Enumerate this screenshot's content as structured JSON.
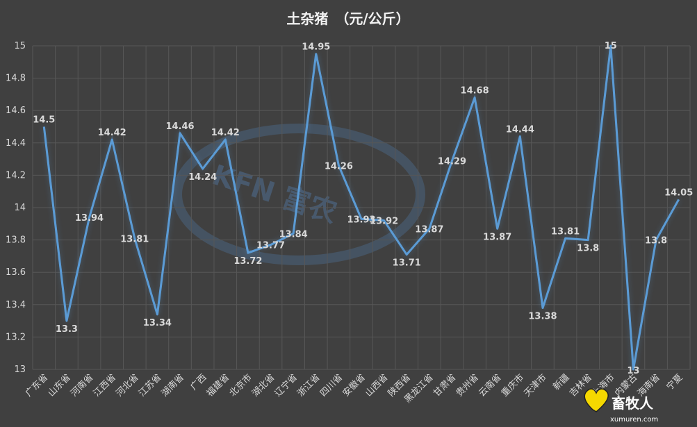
{
  "chart_data": {
    "type": "line",
    "title": "土杂猪　（元/公斤）",
    "xlabel": "",
    "ylabel": "",
    "ylim": [
      13,
      15
    ],
    "yticks": [
      "13",
      "13.2",
      "13.4",
      "13.6",
      "13.8",
      "14",
      "14.2",
      "14.4",
      "14.6",
      "14.8",
      "15"
    ],
    "grid": true,
    "legend": "none",
    "line_color": "#5b9bd5",
    "categories": [
      "广东省",
      "山东省",
      "河南省",
      "江西省",
      "河北省",
      "江苏省",
      "湖南省",
      "广西",
      "福建省",
      "北京市",
      "湖北省",
      "辽宁省",
      "浙江省",
      "四川省",
      "安徽省",
      "山西省",
      "陕西省",
      "黑龙江省",
      "甘肃省",
      "贵州省",
      "云南省",
      "重庆市",
      "天津市",
      "新疆",
      "吉林省",
      "上海市",
      "内蒙古",
      "海南省",
      "宁夏"
    ],
    "values": [
      14.5,
      13.3,
      13.94,
      14.42,
      13.81,
      13.34,
      14.46,
      14.24,
      14.42,
      13.72,
      13.77,
      13.84,
      14.95,
      14.26,
      13.93,
      13.92,
      13.71,
      13.87,
      14.29,
      14.68,
      13.87,
      14.44,
      13.38,
      13.81,
      13.8,
      15,
      13,
      13.8,
      14.05
    ],
    "data_labels": [
      "14.5",
      "13.3",
      "13.94",
      "14.42",
      "13.81",
      "13.34",
      "14.46",
      "14.24",
      "14.42",
      "13.72",
      "13.77",
      "13.84",
      "14.95",
      "14.26",
      "13.93",
      "13.92",
      "13.71",
      "13.87",
      "14.29",
      "14.68",
      "13.87",
      "14.44",
      "13.38",
      "13.81",
      "13.8",
      "15",
      "13",
      "13.8",
      "14.05"
    ]
  },
  "watermark": {
    "text": "KFN 富农",
    "color": "#4f6f92"
  },
  "logo": {
    "name": "畜牧人",
    "url_text": "xumuren.com",
    "icon": "heart-icon"
  }
}
